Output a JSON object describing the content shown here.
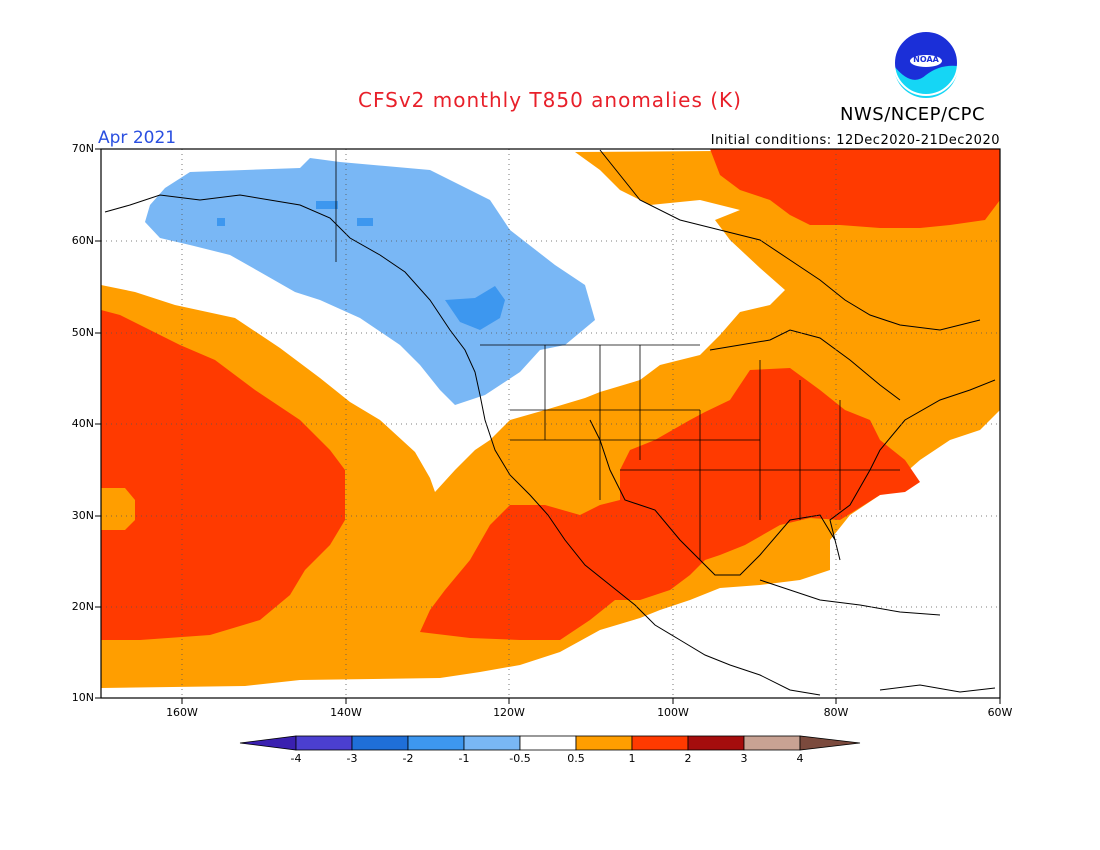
{
  "header": {
    "title": "CFSv2 monthly T850 anomalies (K)",
    "organization": "NWS/NCEP/CPC",
    "logo_text": "NOAA",
    "month": "Apr 2021",
    "initial_conditions": "Initial conditions: 12Dec2020-21Dec2020"
  },
  "map": {
    "projection": "cylindrical equidistant",
    "lon_range": [
      -170,
      -60
    ],
    "lat_range": [
      10,
      70
    ],
    "lat_labels": [
      "70N",
      "60N",
      "50N",
      "40N",
      "30N",
      "20N",
      "10N"
    ],
    "lon_labels": [
      "160W",
      "140W",
      "120W",
      "100W",
      "80W",
      "60W"
    ],
    "grid": "dotted",
    "features": [
      "coastlines",
      "US state boundaries",
      "country boundaries"
    ]
  },
  "colorbar": {
    "labels": [
      "-4",
      "-3",
      "-2",
      "-1",
      "-0.5",
      "0.5",
      "1",
      "2",
      "3",
      "4"
    ],
    "colors": [
      "#3a20b0",
      "#4b3fd0",
      "#1f6fd8",
      "#3d97ef",
      "#79b7f5",
      "#ffffff",
      "#ff9e00",
      "#ff3a00",
      "#a50d0d",
      "#c8a293",
      "#7b4a3d"
    ]
  },
  "colors": {
    "title": "#e8202a",
    "month": "#2a4fe0",
    "text": "#000000",
    "logo_blue": "#1b2fd8",
    "logo_cyan": "#15d6f5"
  }
}
